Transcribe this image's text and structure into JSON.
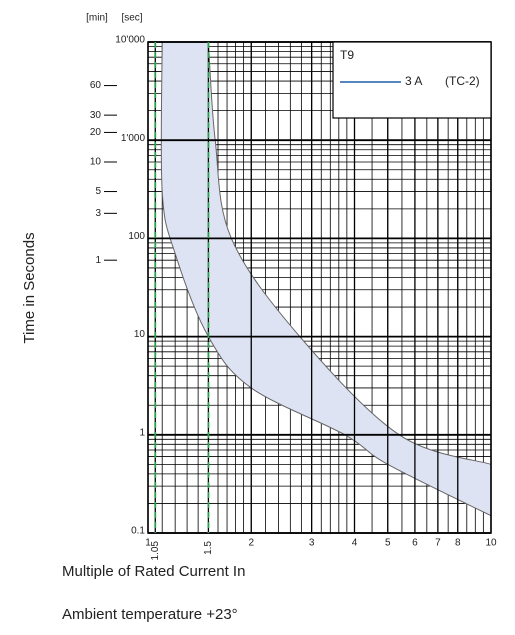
{
  "chart_data": {
    "type": "band",
    "title": "T9",
    "xlabel": "Multiple of Rated Current In",
    "ylabel": "Time in Seconds",
    "note": "Ambient temperature +23°",
    "y_unit": "[sec]",
    "y2_unit": "[min]",
    "xlog": true,
    "ylog": true,
    "grid": true,
    "xlim": [
      1,
      10
    ],
    "ylim": [
      0.1,
      10000
    ],
    "xticks": [
      1,
      1.05,
      1.5,
      2,
      3,
      4,
      5,
      6,
      7,
      8,
      10
    ],
    "yticks": [
      0.1,
      1,
      10,
      100,
      {
        "value": 1000,
        "label": "1'000"
      },
      {
        "value": 10000,
        "label": "10'000"
      }
    ],
    "y2ticks": [
      {
        "value": 3600,
        "label": "60"
      },
      {
        "value": 1800,
        "label": "30"
      },
      {
        "value": 1200,
        "label": "20"
      },
      {
        "value": 600,
        "label": "10"
      },
      {
        "value": 300,
        "label": "5"
      },
      {
        "value": 180,
        "label": "3"
      },
      {
        "value": 60,
        "label": "1"
      }
    ],
    "reference_lines": {
      "x": [
        1.05,
        1.5
      ],
      "color": "#2a9d4a"
    },
    "legend": "upper right",
    "series": [
      {
        "name": "3 A",
        "label": "(TC-2)",
        "color": "#1f5fa8",
        "fill": "#dde3f3",
        "lower": {
          "x": [
            1.1,
            1.1,
            1.2,
            1.5,
            2,
            3.75,
            5,
            10
          ],
          "y": [
            10000,
            300,
            70,
            10,
            3,
            1,
            0.5,
            0.15
          ]
        },
        "upper": {
          "x": [
            1.5,
            1.57,
            1.75,
            2.77,
            5.4,
            10
          ],
          "y": [
            10000,
            1000,
            100,
            10,
            1,
            0.5
          ]
        }
      }
    ]
  }
}
